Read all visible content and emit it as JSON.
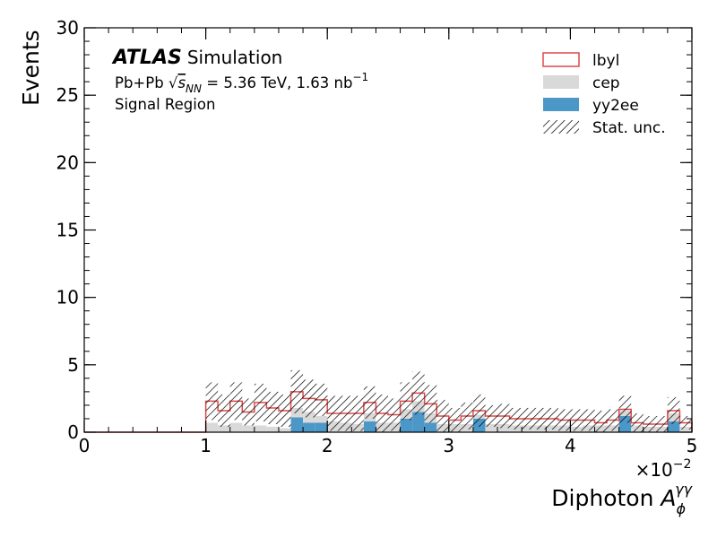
{
  "chart_data": {
    "type": "bar",
    "histtype": "stacked-step",
    "xlabel_main": "Diphoton ",
    "xlabel_symbol": "A",
    "xlabel_sub": "ϕ",
    "xlabel_sup": "γγ",
    "ylabel": "Events",
    "x_multiplier_base": "×10",
    "x_multiplier_exp": "−2",
    "xlim": [
      0,
      5
    ],
    "ylim": [
      0,
      30
    ],
    "x_ticks": [
      "0",
      "1",
      "2",
      "3",
      "4",
      "5"
    ],
    "y_ticks": [
      "0",
      "5",
      "10",
      "15",
      "20",
      "25",
      "30"
    ],
    "atlas": {
      "logo": "ATLAS",
      "label": "Simulation",
      "line1_prefix": "Pb+Pb ",
      "line1_sqrt": "√",
      "line1_s": "s",
      "line1_nn": "NN",
      "line1_suffix": " = 5.36 TeV, 1.63 nb",
      "line1_exp": "−1",
      "line2": "Signal Region"
    },
    "bin_edges": [
      0,
      0.1,
      0.2,
      0.3,
      0.4,
      0.5,
      0.6,
      0.7,
      0.8,
      0.9,
      1.0,
      1.1,
      1.2,
      1.3,
      1.4,
      1.5,
      1.6,
      1.7,
      1.8,
      1.9,
      2.0,
      2.1,
      2.2,
      2.3,
      2.4,
      2.5,
      2.6,
      2.7,
      2.8,
      2.9,
      3.0,
      3.1,
      3.2,
      3.3,
      3.4,
      3.5,
      3.6,
      3.7,
      3.8,
      3.9,
      4.0,
      4.1,
      4.2,
      4.3,
      4.4,
      4.5,
      4.6,
      4.7,
      4.8,
      4.9,
      5.0
    ],
    "series": [
      {
        "name": "yy2ee",
        "style": "filled",
        "color": "#4b97c8",
        "values": [
          0,
          0,
          0,
          0,
          0,
          0,
          0,
          0,
          0,
          0,
          0,
          0,
          0,
          0,
          0,
          0,
          0,
          1.1,
          0.7,
          0.7,
          0,
          0,
          0,
          0.8,
          0,
          0,
          1.0,
          1.5,
          0.7,
          0,
          0,
          0,
          1.0,
          0,
          0,
          0,
          0,
          0,
          0,
          0,
          0,
          0,
          0,
          0,
          1.2,
          0,
          0,
          0,
          0.8,
          0
        ]
      },
      {
        "name": "cep",
        "style": "filled",
        "color": "#d9d9d9",
        "values": [
          0,
          0,
          0,
          0,
          0,
          0,
          0,
          0,
          0,
          0,
          0.7,
          0.5,
          0.7,
          0.5,
          0.5,
          0.4,
          0.3,
          0.7,
          0.8,
          0.5,
          0.8,
          0.7,
          0.6,
          0.6,
          0.7,
          0.7,
          0.7,
          0.8,
          0.7,
          0.6,
          0.6,
          0.6,
          0.3,
          0.6,
          0.6,
          0.5,
          0.5,
          0.5,
          0.5,
          0.5,
          0.4,
          0.5,
          0.5,
          0.5,
          0.4,
          0.5,
          0.4,
          0.4,
          0.6,
          0.4
        ]
      },
      {
        "name": "lbyl",
        "style": "step",
        "color": "#e04848",
        "values": [
          0,
          0,
          0,
          0,
          0,
          0,
          0,
          0,
          0,
          0,
          1.6,
          1.1,
          1.6,
          1.0,
          1.7,
          1.4,
          1.3,
          1.2,
          1.0,
          1.2,
          0.6,
          0.7,
          0.8,
          0.8,
          0.7,
          0.6,
          0.6,
          0.6,
          0.7,
          0.6,
          0.3,
          0.6,
          0.3,
          0.6,
          0.6,
          0.5,
          0.5,
          0.5,
          0.5,
          0.4,
          0.5,
          0.4,
          0.2,
          0.4,
          0.1,
          0.2,
          0.2,
          0.2,
          0.2,
          0.3
        ]
      }
    ],
    "stat_unc": [
      0,
      0,
      0,
      0,
      0,
      0,
      0,
      0,
      0,
      0,
      1.4,
      1.2,
      1.4,
      1.0,
      1.4,
      1.2,
      1.2,
      1.6,
      1.4,
      1.2,
      1.3,
      1.3,
      1.3,
      1.2,
      1.4,
      1.2,
      1.4,
      1.6,
      1.4,
      1.2,
      0.9,
      1.0,
      1.2,
      0.8,
      0.9,
      0.8,
      0.8,
      0.8,
      0.8,
      0.8,
      0.8,
      0.8,
      0.9,
      0.8,
      1.0,
      0.7,
      0.6,
      0.6,
      1.0,
      0.5
    ],
    "legend_position": "top-right",
    "legend": [
      {
        "key": "lbyl",
        "label": "lbyl",
        "style": "step"
      },
      {
        "key": "cep",
        "label": "cep",
        "style": "filled"
      },
      {
        "key": "yy2ee",
        "label": "yy2ee",
        "style": "filled"
      },
      {
        "key": "stat",
        "label": "Stat. unc.",
        "style": "hatch"
      }
    ],
    "grid": false
  }
}
